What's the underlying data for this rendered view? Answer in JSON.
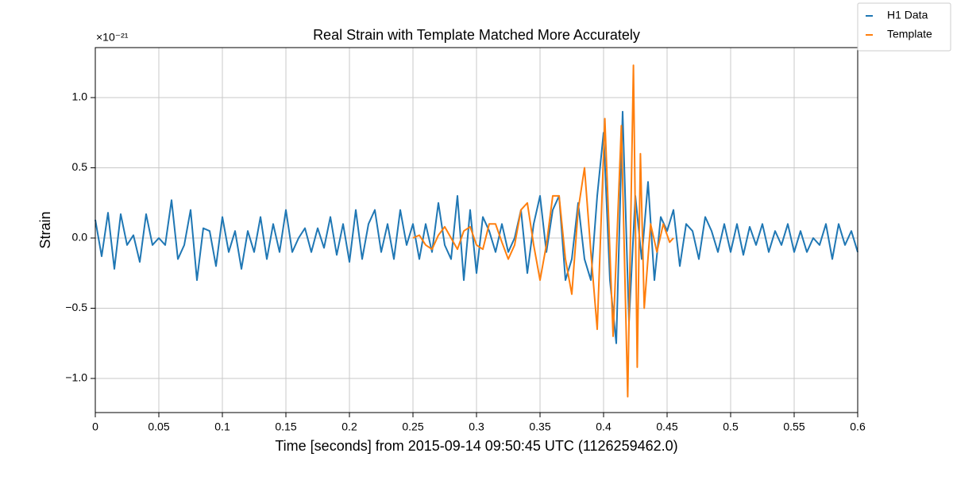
{
  "chart_data": {
    "type": "line",
    "title": "Real Strain with Template Matched More Accurately",
    "x_label": "Time [seconds] from 2015-09-14 09:50:45 UTC (1126259462.0)",
    "y_label": "Strain",
    "y_offset_label": "×10⁻²¹",
    "xlim": [
      0,
      0.6
    ],
    "ylim": [
      -1.243,
      1.356
    ],
    "xticks": [
      0,
      0.05,
      0.1,
      0.15,
      0.2,
      0.25,
      0.3,
      0.35,
      0.4,
      0.45,
      0.5,
      0.55,
      0.6
    ],
    "yticks": [
      {
        "value": -1,
        "label": "−1.0"
      },
      {
        "value": -0.5,
        "label": "−0.5"
      },
      {
        "value": 0,
        "label": "0.0"
      },
      {
        "value": 0.5,
        "label": "0.5"
      },
      {
        "value": 1,
        "label": "1.0"
      }
    ],
    "grid": true,
    "legend": "upper right",
    "series": [
      {
        "name": "H1 Data",
        "color": "#1f77b4",
        "x": [
          0,
          0.005,
          0.01,
          0.015,
          0.02,
          0.025,
          0.03,
          0.035,
          0.04,
          0.045,
          0.05,
          0.055,
          0.06,
          0.065,
          0.07,
          0.075,
          0.08,
          0.085,
          0.09,
          0.095,
          0.1,
          0.105,
          0.11,
          0.115,
          0.12,
          0.125,
          0.13,
          0.135,
          0.14,
          0.145,
          0.15,
          0.155,
          0.16,
          0.165,
          0.17,
          0.175,
          0.18,
          0.185,
          0.19,
          0.195,
          0.2,
          0.205,
          0.21,
          0.215,
          0.22,
          0.225,
          0.23,
          0.235,
          0.24,
          0.245,
          0.25,
          0.255,
          0.26,
          0.265,
          0.27,
          0.275,
          0.28,
          0.285,
          0.29,
          0.295,
          0.3,
          0.305,
          0.31,
          0.315,
          0.32,
          0.325,
          0.33,
          0.335,
          0.34,
          0.345,
          0.35,
          0.355,
          0.36,
          0.365,
          0.37,
          0.375,
          0.38,
          0.385,
          0.39,
          0.395,
          0.4,
          0.405,
          0.41,
          0.415,
          0.42,
          0.425,
          0.43,
          0.435,
          0.44,
          0.445,
          0.45,
          0.455,
          0.46,
          0.465,
          0.47,
          0.475,
          0.48,
          0.485,
          0.49,
          0.495,
          0.5,
          0.505,
          0.51,
          0.515,
          0.52,
          0.525,
          0.53,
          0.535,
          0.54,
          0.545,
          0.55,
          0.555,
          0.56,
          0.565,
          0.57,
          0.575,
          0.58,
          0.585,
          0.59,
          0.595,
          0.6
        ],
        "values": [
          0.13,
          -0.13,
          0.18,
          -0.22,
          0.17,
          -0.05,
          0.02,
          -0.17,
          0.17,
          -0.05,
          0.0,
          -0.05,
          0.27,
          -0.15,
          -0.05,
          0.2,
          -0.3,
          0.07,
          0.05,
          -0.2,
          0.15,
          -0.1,
          0.05,
          -0.22,
          0.05,
          -0.1,
          0.15,
          -0.15,
          0.1,
          -0.1,
          0.2,
          -0.1,
          0.0,
          0.07,
          -0.1,
          0.07,
          -0.07,
          0.15,
          -0.12,
          0.1,
          -0.17,
          0.2,
          -0.15,
          0.1,
          0.2,
          -0.1,
          0.1,
          -0.15,
          0.2,
          -0.05,
          0.1,
          -0.15,
          0.1,
          -0.1,
          0.25,
          -0.05,
          -0.15,
          0.3,
          -0.3,
          0.2,
          -0.25,
          0.15,
          0.05,
          -0.1,
          0.1,
          -0.1,
          0.0,
          0.2,
          -0.25,
          0.1,
          0.3,
          -0.1,
          0.2,
          0.3,
          -0.3,
          -0.15,
          0.25,
          -0.15,
          -0.3,
          0.3,
          0.75,
          -0.3,
          -0.75,
          0.9,
          -0.6,
          0.3,
          -0.15,
          0.4,
          -0.3,
          0.15,
          0.05,
          0.2,
          -0.2,
          0.1,
          0.05,
          -0.15,
          0.15,
          0.05,
          -0.1,
          0.1,
          -0.1,
          0.1,
          -0.12,
          0.08,
          -0.05,
          0.1,
          -0.1,
          0.05,
          -0.05,
          0.1,
          -0.1,
          0.05,
          -0.1,
          0.0,
          -0.05,
          0.1,
          -0.15,
          0.1,
          -0.05,
          0.05,
          -0.1
        ]
      },
      {
        "name": "Template",
        "color": "#ff7f0e",
        "x": [
          0.25,
          0.255,
          0.26,
          0.265,
          0.27,
          0.275,
          0.28,
          0.285,
          0.29,
          0.295,
          0.3,
          0.305,
          0.31,
          0.315,
          0.32,
          0.325,
          0.33,
          0.335,
          0.34,
          0.345,
          0.35,
          0.355,
          0.36,
          0.365,
          0.37,
          0.375,
          0.38,
          0.385,
          0.39,
          0.395,
          0.401,
          0.4075,
          0.414,
          0.419,
          0.4235,
          0.4265,
          0.429,
          0.432,
          0.437,
          0.442,
          0.447,
          0.452,
          0.455
        ],
        "values": [
          0.0,
          0.02,
          -0.05,
          -0.08,
          0.02,
          0.08,
          0.0,
          -0.08,
          0.05,
          0.08,
          -0.05,
          -0.08,
          0.1,
          0.1,
          -0.03,
          -0.15,
          -0.05,
          0.2,
          0.25,
          -0.05,
          -0.3,
          -0.05,
          0.3,
          0.3,
          -0.15,
          -0.4,
          0.2,
          0.5,
          -0.1,
          -0.65,
          0.85,
          -0.7,
          0.8,
          -1.13,
          1.23,
          -0.92,
          0.6,
          -0.5,
          0.1,
          -0.1,
          0.1,
          -0.03,
          0.0
        ]
      }
    ]
  }
}
